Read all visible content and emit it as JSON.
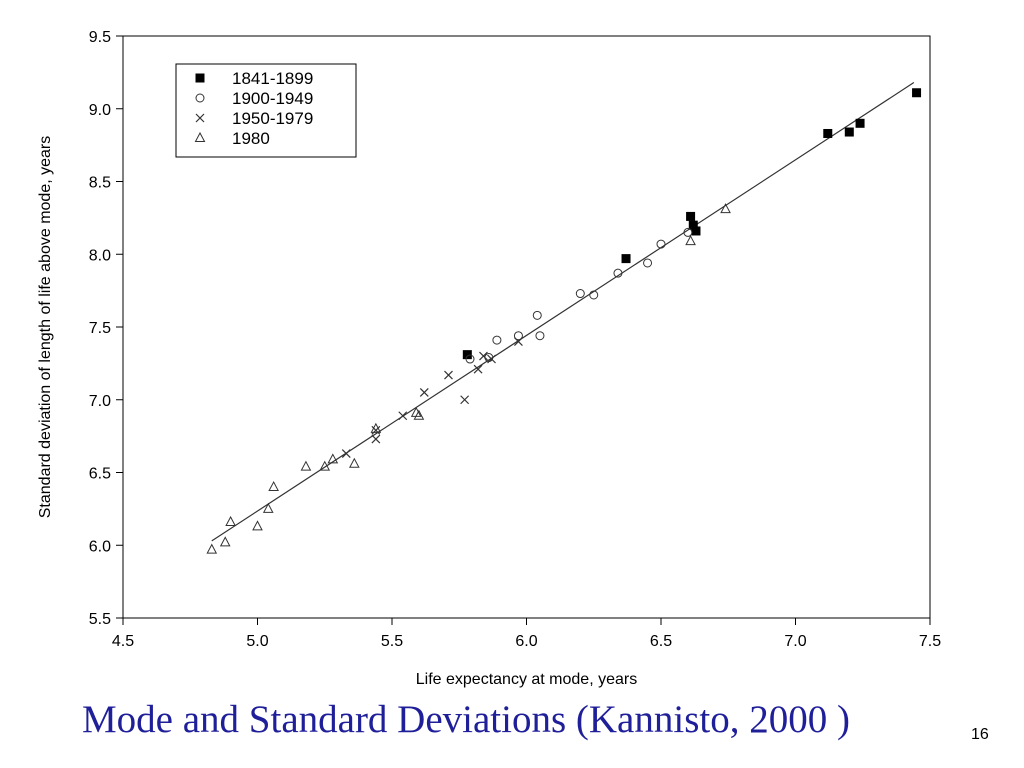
{
  "slide": {
    "caption": "Mode and Standard Deviations (Kannisto, 2000 )",
    "page_number": "16",
    "caption_color": "#1f1f9a"
  },
  "chart_data": {
    "type": "scatter",
    "title": "",
    "xlabel": "Life expectancy at mode, years",
    "ylabel": "Standard deviation of length of life above mode, years",
    "xlim": [
      4.5,
      7.5
    ],
    "ylim": [
      5.5,
      9.5
    ],
    "xticks": [
      "4.5",
      "5.0",
      "5.5",
      "6.0",
      "6.5",
      "7.0",
      "7.5"
    ],
    "yticks": [
      "5.5",
      "6.0",
      "6.5",
      "7.0",
      "7.5",
      "8.0",
      "8.5",
      "9.0",
      "9.5"
    ],
    "grid": false,
    "legend_position": "top-left",
    "series": [
      {
        "name": "1841-1899",
        "marker": "filled-square",
        "x": [
          5.78,
          6.37,
          6.61,
          6.62,
          6.63,
          7.12,
          7.2,
          7.24,
          7.45
        ],
        "y": [
          7.31,
          7.97,
          8.26,
          8.2,
          8.16,
          8.83,
          8.84,
          8.9,
          9.11
        ]
      },
      {
        "name": "1900-1949",
        "marker": "open-circle",
        "x": [
          5.79,
          5.86,
          5.89,
          5.97,
          6.04,
          6.05,
          6.2,
          6.25,
          6.34,
          6.45,
          6.5,
          6.6
        ],
        "y": [
          7.28,
          7.29,
          7.41,
          7.44,
          7.58,
          7.44,
          7.73,
          7.72,
          7.87,
          7.94,
          8.07,
          8.15
        ]
      },
      {
        "name": "1950-1979",
        "marker": "x",
        "x": [
          5.33,
          5.44,
          5.44,
          5.54,
          5.62,
          5.71,
          5.77,
          5.82,
          5.84,
          5.87,
          5.97
        ],
        "y": [
          6.63,
          6.73,
          6.79,
          6.89,
          7.05,
          7.17,
          7.0,
          7.21,
          7.3,
          7.28,
          7.4
        ]
      },
      {
        "name": "1980",
        "marker": "open-triangle",
        "x": [
          4.83,
          4.88,
          4.9,
          5.0,
          5.04,
          5.06,
          5.18,
          5.25,
          5.28,
          5.36,
          5.44,
          5.59,
          5.6,
          6.61,
          6.74
        ],
        "y": [
          5.97,
          6.02,
          6.16,
          6.13,
          6.25,
          6.4,
          6.54,
          6.54,
          6.59,
          6.56,
          6.8,
          6.91,
          6.89,
          8.09,
          8.31
        ]
      }
    ],
    "fit_line": {
      "x": [
        4.83,
        7.44
      ],
      "y": [
        6.03,
        9.18
      ]
    }
  }
}
